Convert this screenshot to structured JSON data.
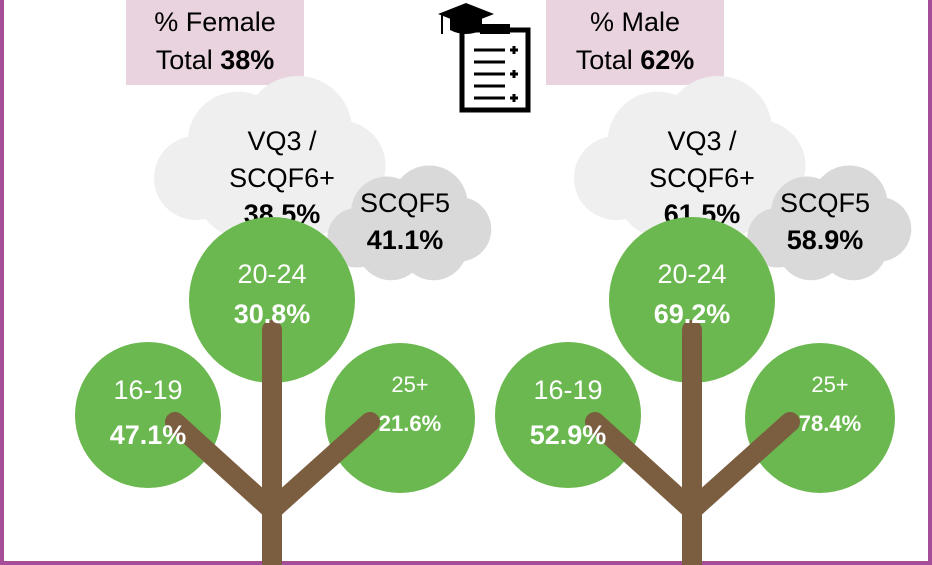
{
  "panels": [
    {
      "heading": "% Female",
      "total_label": "Total",
      "total": "38%",
      "clouds": [
        {
          "lines": [
            "VQ3 /",
            "SCQF6+"
          ],
          "value": "38.5%"
        },
        {
          "lines": [
            "SCQF5"
          ],
          "value": "41.1%"
        }
      ],
      "ages": [
        {
          "label": "20-24",
          "value": "30.8%"
        },
        {
          "label": "16-19",
          "value": "47.1%"
        },
        {
          "label": "25+",
          "value": "21.6%"
        }
      ]
    },
    {
      "heading": "% Male",
      "total_label": "Total",
      "total": "62%",
      "clouds": [
        {
          "lines": [
            "VQ3 /",
            "SCQF6+"
          ],
          "value": "61.5%"
        },
        {
          "lines": [
            "SCQF5"
          ],
          "value": "58.9%"
        }
      ],
      "ages": [
        {
          "label": "20-24",
          "value": "69.2%"
        },
        {
          "label": "16-19",
          "value": "52.9%"
        },
        {
          "label": "25+",
          "value": "78.4%"
        }
      ]
    }
  ]
}
